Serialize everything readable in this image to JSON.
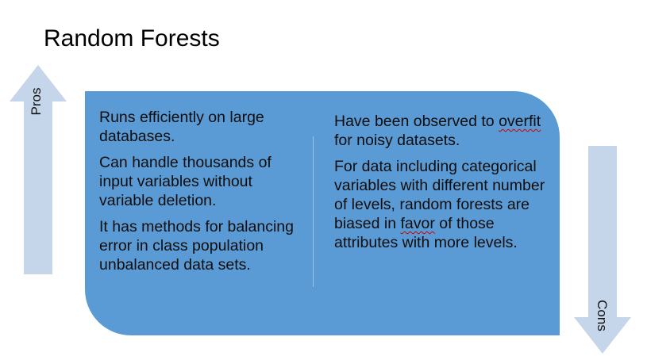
{
  "title": "Random Forests",
  "arrows": {
    "pros_label": "Pros",
    "cons_label": "Cons"
  },
  "colors": {
    "panel": "#5b9bd5",
    "arrow": "#c5d6ea"
  },
  "pros": [
    "Runs efficiently on large databases.",
    "Can handle thousands of input variables without variable deletion.",
    "It has methods for balancing error in class population unbalanced data sets."
  ],
  "cons": {
    "item1_prefix": "Have been observed to",
    "item1_flagged": "overfit",
    "item1_suffix": " for noisy datasets.",
    "item2_prefix": "For data including categorical variables with different number of levels, random forests are biased in ",
    "item2_flagged": "favor",
    "item2_suffix": " of those attributes with more levels."
  }
}
